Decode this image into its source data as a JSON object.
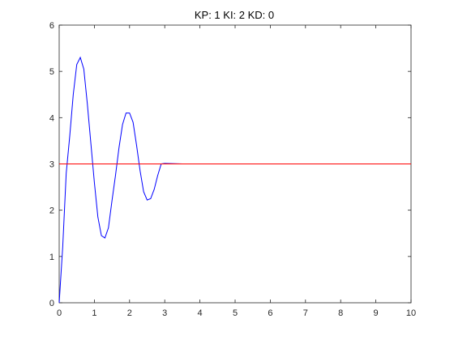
{
  "chart_data": {
    "type": "line",
    "title": "KP: 1 KI: 2 KD: 0",
    "xlabel": "",
    "ylabel": "",
    "xlim": [
      0,
      10
    ],
    "ylim": [
      0,
      6
    ],
    "xticks": [
      "0",
      "1",
      "2",
      "3",
      "4",
      "5",
      "6",
      "7",
      "8",
      "9",
      "10"
    ],
    "yticks": [
      "0",
      "1",
      "2",
      "3",
      "4",
      "5",
      "6"
    ],
    "grid": false,
    "series": [
      {
        "color": "#0000ff",
        "x": [
          0,
          0.1,
          0.2,
          0.3,
          0.4,
          0.5,
          0.6,
          0.7,
          0.8,
          0.9,
          1.0,
          1.1,
          1.2,
          1.3,
          1.4,
          1.5,
          1.6,
          1.7,
          1.8,
          1.9,
          2.0,
          2.1,
          2.2,
          2.3,
          2.4,
          2.5,
          2.6,
          2.7,
          2.8,
          2.9,
          3.0,
          3.5,
          4.0,
          5.0,
          6.0,
          7.0,
          8.0,
          9.0,
          10.0
        ],
        "y": [
          0,
          1.2,
          2.8,
          3.6,
          4.5,
          5.15,
          5.3,
          5.05,
          4.3,
          3.45,
          2.6,
          1.85,
          1.45,
          1.4,
          1.62,
          2.2,
          2.75,
          3.35,
          3.85,
          4.1,
          4.1,
          3.9,
          3.4,
          2.85,
          2.4,
          2.22,
          2.25,
          2.45,
          2.75,
          3.0,
          3.01,
          3.0,
          3.0,
          3.0,
          3.0,
          3.0,
          3.0,
          3.0,
          3.0
        ]
      },
      {
        "color": "#ff0000",
        "x": [
          0,
          10
        ],
        "y": [
          3,
          3
        ]
      }
    ]
  }
}
